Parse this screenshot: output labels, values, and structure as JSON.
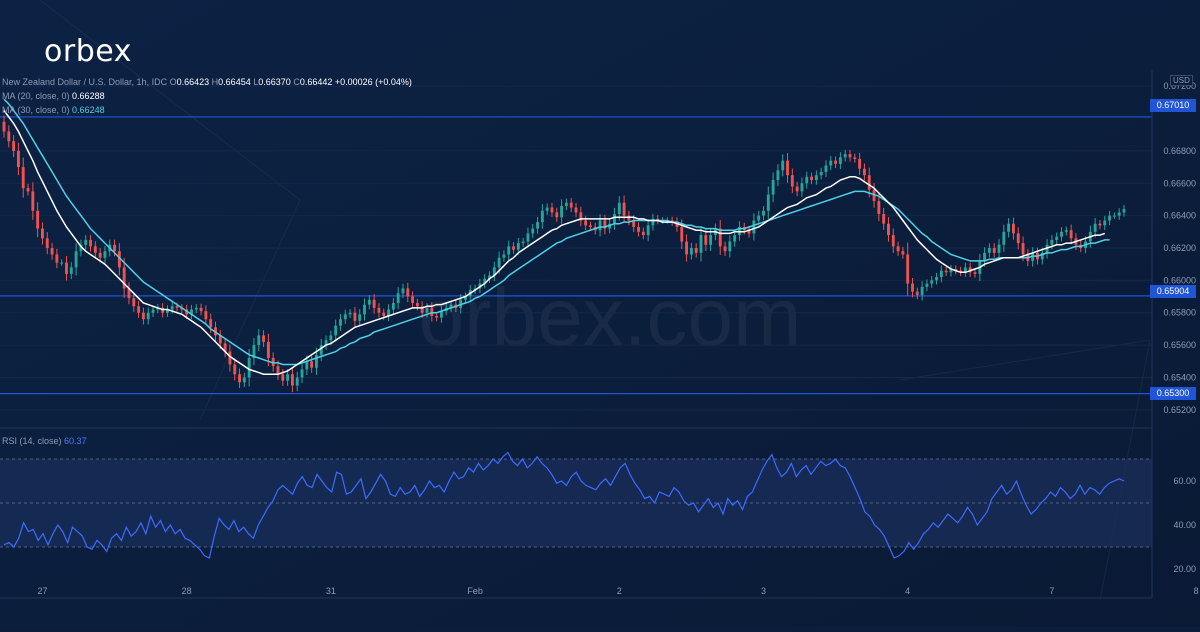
{
  "brand": {
    "logo_text": "orbex",
    "watermark": "orbex.com"
  },
  "legend": {
    "symbol": "New Zealand Dollar / U.S. Dollar, 1h, IDC",
    "o_label": "O",
    "o_value": "0.66423",
    "h_label": "H",
    "h_value": "0.66454",
    "l_label": "L",
    "l_value": "0.66370",
    "c_label": "C",
    "c_value": "0.66442",
    "change": "+0.00026 (+0.04%)",
    "ma20_label": "MA (20, close, 0)",
    "ma20_value": "0.66288",
    "ma30_label": "MA (30, close, 0)",
    "ma30_value": "0.66248",
    "rsi_label": "RSI (14, close)",
    "rsi_value": "60.37"
  },
  "currency_label": "USD",
  "colors": {
    "background": "#0b1d3a",
    "bull": "#26a69a",
    "bear": "#ef5350",
    "ma20": "#ffffff",
    "ma30": "#4fd1e6",
    "level_line": "#1f55d6",
    "rsi_line": "#3d6bff",
    "rsi_band": "#1a2f5c"
  },
  "chart_data": [
    {
      "type": "candlestick",
      "title": "",
      "ylim": [
        0.651,
        0.673
      ],
      "price_axis_ticks": [
        "0.67200",
        "0.66800",
        "0.66600",
        "0.66400",
        "0.66200",
        "0.66000",
        "0.65800",
        "0.65600",
        "0.65400",
        "0.65200"
      ],
      "top_partial_tick": "0.67200",
      "x_tick_labels": [
        "27",
        "28",
        "31",
        "Feb",
        "2",
        "3",
        "4",
        "7",
        "8"
      ],
      "x_tick_index": [
        8,
        38,
        68,
        98,
        128,
        158,
        188,
        218,
        248
      ],
      "horizontal_levels": [
        0.6701,
        0.65904,
        0.653
      ],
      "horizontal_level_labels": [
        "0.67010",
        "0.65904",
        "0.65300"
      ],
      "close": [
        0.6692,
        0.6686,
        0.668,
        0.667,
        0.6657,
        0.6655,
        0.6643,
        0.6632,
        0.6626,
        0.662,
        0.6616,
        0.6611,
        0.6611,
        0.6604,
        0.6608,
        0.6618,
        0.6622,
        0.6625,
        0.6621,
        0.6617,
        0.6614,
        0.6618,
        0.6622,
        0.6618,
        0.6608,
        0.6595,
        0.6589,
        0.6584,
        0.658,
        0.6576,
        0.658,
        0.6582,
        0.6583,
        0.658,
        0.6582,
        0.6584,
        0.6583,
        0.6582,
        0.6579,
        0.6582,
        0.6583,
        0.6581,
        0.6576,
        0.6571,
        0.6566,
        0.6561,
        0.6556,
        0.6548,
        0.6542,
        0.6537,
        0.654,
        0.6552,
        0.656,
        0.6566,
        0.6562,
        0.6552,
        0.6547,
        0.6542,
        0.6538,
        0.6542,
        0.6535,
        0.654,
        0.6545,
        0.655,
        0.6546,
        0.6554,
        0.656,
        0.6563,
        0.6566,
        0.6572,
        0.6576,
        0.6579,
        0.658,
        0.6575,
        0.6579,
        0.6585,
        0.6588,
        0.6583,
        0.658,
        0.6578,
        0.6582,
        0.6586,
        0.6592,
        0.6595,
        0.659,
        0.6586,
        0.6584,
        0.658,
        0.6583,
        0.6578,
        0.6577,
        0.6581,
        0.6583,
        0.6585,
        0.6583,
        0.6588,
        0.659,
        0.6594,
        0.6595,
        0.6598,
        0.6601,
        0.6603,
        0.6608,
        0.6614,
        0.6616,
        0.6621,
        0.6619,
        0.6623,
        0.6624,
        0.6629,
        0.6632,
        0.6636,
        0.6643,
        0.6645,
        0.6642,
        0.6639,
        0.6646,
        0.6648,
        0.6645,
        0.6642,
        0.6637,
        0.6634,
        0.6633,
        0.6631,
        0.6637,
        0.6632,
        0.6635,
        0.6641,
        0.6648,
        0.664,
        0.6637,
        0.6633,
        0.663,
        0.6628,
        0.6634,
        0.6638,
        0.6637,
        0.6637,
        0.6637,
        0.6636,
        0.6633,
        0.6624,
        0.6616,
        0.662,
        0.6617,
        0.6628,
        0.6622,
        0.6628,
        0.6632,
        0.6621,
        0.6618,
        0.6624,
        0.6628,
        0.6633,
        0.6631,
        0.6629,
        0.6637,
        0.664,
        0.6643,
        0.6653,
        0.6662,
        0.6668,
        0.6674,
        0.6665,
        0.6658,
        0.6655,
        0.666,
        0.6664,
        0.6662,
        0.6665,
        0.6667,
        0.6671,
        0.6674,
        0.6672,
        0.6676,
        0.6678,
        0.6676,
        0.6675,
        0.6669,
        0.6665,
        0.6656,
        0.6649,
        0.6641,
        0.6635,
        0.6628,
        0.6621,
        0.6618,
        0.6616,
        0.6598,
        0.6593,
        0.6591,
        0.6596,
        0.6598,
        0.66,
        0.6602,
        0.6606,
        0.6605,
        0.6607,
        0.6606,
        0.6605,
        0.6608,
        0.6605,
        0.6604,
        0.6612,
        0.6617,
        0.662,
        0.6617,
        0.6622,
        0.663,
        0.6635,
        0.6629,
        0.6623,
        0.6616,
        0.6612,
        0.6617,
        0.6613,
        0.6617,
        0.6622,
        0.6625,
        0.6627,
        0.663,
        0.6631,
        0.6626,
        0.6622,
        0.662,
        0.6624,
        0.663,
        0.6635,
        0.6634,
        0.6637,
        0.664,
        0.664,
        0.6642,
        0.6644
      ],
      "ma20": [
        0.6705,
        0.6701,
        0.6697,
        0.6692,
        0.6686,
        0.668,
        0.6674,
        0.6667,
        0.6661,
        0.6655,
        0.6649,
        0.6643,
        0.6638,
        0.6633,
        0.6629,
        0.6625,
        0.6621,
        0.6618,
        0.6616,
        0.6614,
        0.6612,
        0.661,
        0.6607,
        0.6604,
        0.6601,
        0.6598,
        0.6595,
        0.6592,
        0.6589,
        0.6586,
        0.6585,
        0.6584,
        0.6583,
        0.6582,
        0.6582,
        0.6581,
        0.658,
        0.6579,
        0.6577,
        0.6575,
        0.6573,
        0.6571,
        0.6568,
        0.6565,
        0.6562,
        0.6559,
        0.6556,
        0.6553,
        0.6551,
        0.6549,
        0.6547,
        0.6545,
        0.6544,
        0.6543,
        0.6542,
        0.6542,
        0.6542,
        0.6542,
        0.6543,
        0.6544,
        0.6546,
        0.6548,
        0.655,
        0.6552,
        0.6554,
        0.6556,
        0.6558,
        0.656,
        0.6561,
        0.6563,
        0.6565,
        0.6567,
        0.6569,
        0.6571,
        0.6572,
        0.6573,
        0.6574,
        0.6575,
        0.6576,
        0.6577,
        0.6578,
        0.6579,
        0.658,
        0.6581,
        0.6582,
        0.6583,
        0.6583,
        0.6583,
        0.6584,
        0.6584,
        0.6585,
        0.6585,
        0.6586,
        0.6587,
        0.6588,
        0.6589,
        0.659,
        0.6592,
        0.6594,
        0.6596,
        0.6598,
        0.6601,
        0.6603,
        0.6606,
        0.6609,
        0.6612,
        0.6614,
        0.6617,
        0.6619,
        0.6621,
        0.6623,
        0.6625,
        0.6627,
        0.6629,
        0.6631,
        0.6632,
        0.6634,
        0.6635,
        0.6636,
        0.6637,
        0.6638,
        0.6638,
        0.6638,
        0.6638,
        0.6638,
        0.6638,
        0.6638,
        0.6639,
        0.6639,
        0.6639,
        0.6639,
        0.6639,
        0.6638,
        0.6638,
        0.6637,
        0.6637,
        0.6637,
        0.6636,
        0.6636,
        0.6636,
        0.6635,
        0.6634,
        0.6633,
        0.6632,
        0.6631,
        0.6631,
        0.663,
        0.663,
        0.663,
        0.6629,
        0.6629,
        0.6629,
        0.663,
        0.663,
        0.663,
        0.6631,
        0.6632,
        0.6633,
        0.6635,
        0.6637,
        0.6639,
        0.6641,
        0.6643,
        0.6645,
        0.6646,
        0.6647,
        0.6649,
        0.6651,
        0.6652,
        0.6653,
        0.6655,
        0.6657,
        0.6658,
        0.666,
        0.6662,
        0.6663,
        0.6664,
        0.6664,
        0.6663,
        0.6661,
        0.6659,
        0.6657,
        0.6654,
        0.6651,
        0.6648,
        0.6645,
        0.6641,
        0.6637,
        0.6633,
        0.6629,
        0.6625,
        0.6622,
        0.6619,
        0.6616,
        0.6613,
        0.6611,
        0.6609,
        0.6607,
        0.6606,
        0.6605,
        0.6605,
        0.6606,
        0.6607,
        0.6608,
        0.661,
        0.6611,
        0.6612,
        0.6613,
        0.6614,
        0.6614,
        0.6614,
        0.6614,
        0.6615,
        0.6616,
        0.6617,
        0.6618,
        0.6619,
        0.662,
        0.6621,
        0.6622,
        0.6622,
        0.6623,
        0.6623,
        0.6624,
        0.6625,
        0.6626,
        0.6627,
        0.6628,
        0.6628,
        0.6629
      ],
      "ma30": [
        0.6712,
        0.6709,
        0.6705,
        0.6701,
        0.6697,
        0.6692,
        0.6687,
        0.6682,
        0.6677,
        0.6672,
        0.6667,
        0.6662,
        0.6657,
        0.6652,
        0.6648,
        0.6644,
        0.664,
        0.6636,
        0.6632,
        0.6629,
        0.6626,
        0.6623,
        0.662,
        0.6617,
        0.6614,
        0.6611,
        0.6608,
        0.6605,
        0.6602,
        0.6599,
        0.6597,
        0.6595,
        0.6593,
        0.6591,
        0.6589,
        0.6587,
        0.6585,
        0.6583,
        0.6581,
        0.6579,
        0.6577,
        0.6575,
        0.6573,
        0.657,
        0.6568,
        0.6566,
        0.6564,
        0.6562,
        0.656,
        0.6558,
        0.6556,
        0.6554,
        0.6553,
        0.6552,
        0.6551,
        0.655,
        0.6549,
        0.6549,
        0.6548,
        0.6548,
        0.6548,
        0.6548,
        0.6549,
        0.655,
        0.6551,
        0.6552,
        0.6553,
        0.6554,
        0.6555,
        0.6556,
        0.6558,
        0.6559,
        0.6561,
        0.6562,
        0.6564,
        0.6565,
        0.6566,
        0.6568,
        0.6569,
        0.657,
        0.6571,
        0.6572,
        0.6573,
        0.6574,
        0.6575,
        0.6576,
        0.6577,
        0.6578,
        0.6579,
        0.658,
        0.658,
        0.6581,
        0.6582,
        0.6583,
        0.6584,
        0.6585,
        0.6586,
        0.6587,
        0.6589,
        0.659,
        0.6592,
        0.6594,
        0.6596,
        0.6598,
        0.66,
        0.6603,
        0.6605,
        0.6607,
        0.6609,
        0.6611,
        0.6613,
        0.6615,
        0.6617,
        0.6619,
        0.6621,
        0.6623,
        0.6624,
        0.6626,
        0.6627,
        0.6628,
        0.6629,
        0.663,
        0.6631,
        0.6632,
        0.6633,
        0.6633,
        0.6634,
        0.6635,
        0.6635,
        0.6636,
        0.6636,
        0.6637,
        0.6637,
        0.6637,
        0.6637,
        0.6637,
        0.6637,
        0.6637,
        0.6637,
        0.6636,
        0.6636,
        0.6635,
        0.6634,
        0.6634,
        0.6633,
        0.6633,
        0.6632,
        0.6632,
        0.6632,
        0.6631,
        0.6631,
        0.6631,
        0.6631,
        0.6632,
        0.6632,
        0.6633,
        0.6634,
        0.6635,
        0.6636,
        0.6637,
        0.6638,
        0.6639,
        0.664,
        0.6641,
        0.6642,
        0.6643,
        0.6644,
        0.6645,
        0.6646,
        0.6647,
        0.6648,
        0.6649,
        0.665,
        0.6651,
        0.6652,
        0.6653,
        0.6654,
        0.6655,
        0.6655,
        0.6655,
        0.6654,
        0.6653,
        0.6652,
        0.665,
        0.6648,
        0.6646,
        0.6644,
        0.6641,
        0.6638,
        0.6635,
        0.6632,
        0.6629,
        0.6627,
        0.6624,
        0.6622,
        0.662,
        0.6618,
        0.6616,
        0.6615,
        0.6614,
        0.6613,
        0.6612,
        0.6612,
        0.6612,
        0.6612,
        0.6613,
        0.6613,
        0.6614,
        0.6614,
        0.6614,
        0.6614,
        0.6614,
        0.6614,
        0.6614,
        0.6615,
        0.6615,
        0.6616,
        0.6617,
        0.6617,
        0.6618,
        0.6619,
        0.6619,
        0.662,
        0.6621,
        0.6621,
        0.6622,
        0.6623,
        0.6623,
        0.6624,
        0.6625,
        0.6625
      ]
    },
    {
      "type": "line",
      "title": "",
      "ylim": [
        15,
        75
      ],
      "y_ticks": [
        "60.00",
        "40.00",
        "20.00"
      ],
      "band": [
        30,
        70
      ],
      "midline": 50,
      "values": [
        31,
        32,
        30,
        34,
        41,
        37,
        38,
        33,
        36,
        31,
        36,
        40,
        37,
        32,
        39,
        37,
        35,
        30,
        29,
        33,
        31,
        28,
        34,
        36,
        33,
        39,
        35,
        37,
        41,
        36,
        44,
        39,
        42,
        37,
        40,
        36,
        38,
        34,
        33,
        31,
        29,
        26,
        25,
        35,
        43,
        40,
        38,
        42,
        37,
        39,
        36,
        34,
        40,
        44,
        48,
        51,
        56,
        58,
        56,
        54,
        59,
        62,
        58,
        57,
        63,
        60,
        57,
        55,
        64,
        63,
        54,
        55,
        58,
        61,
        52,
        55,
        59,
        63,
        60,
        54,
        53,
        57,
        54,
        55,
        58,
        53,
        56,
        60,
        57,
        58,
        55,
        60,
        64,
        61,
        62,
        66,
        64,
        68,
        65,
        67,
        70,
        68,
        71,
        73,
        69,
        67,
        70,
        66,
        68,
        71,
        68,
        66,
        63,
        59,
        60,
        58,
        62,
        64,
        60,
        58,
        57,
        56,
        59,
        61,
        58,
        62,
        66,
        68,
        63,
        59,
        56,
        52,
        53,
        50,
        55,
        54,
        53,
        57,
        55,
        51,
        49,
        50,
        46,
        49,
        52,
        48,
        50,
        45,
        52,
        49,
        51,
        47,
        53,
        55,
        60,
        65,
        69,
        72,
        66,
        62,
        64,
        68,
        62,
        65,
        67,
        63,
        66,
        69,
        67,
        68,
        70,
        67,
        66,
        62,
        57,
        52,
        46,
        44,
        40,
        38,
        35,
        30,
        25,
        26,
        28,
        32,
        29,
        32,
        36,
        38,
        41,
        39,
        42,
        45,
        43,
        41,
        44,
        48,
        45,
        40,
        43,
        46,
        52,
        55,
        58,
        54,
        56,
        60,
        54,
        49,
        45,
        47,
        50,
        52,
        55,
        53,
        57,
        55,
        52,
        54,
        58,
        54,
        57,
        56,
        54,
        57,
        59,
        60,
        61,
        60
      ]
    }
  ]
}
